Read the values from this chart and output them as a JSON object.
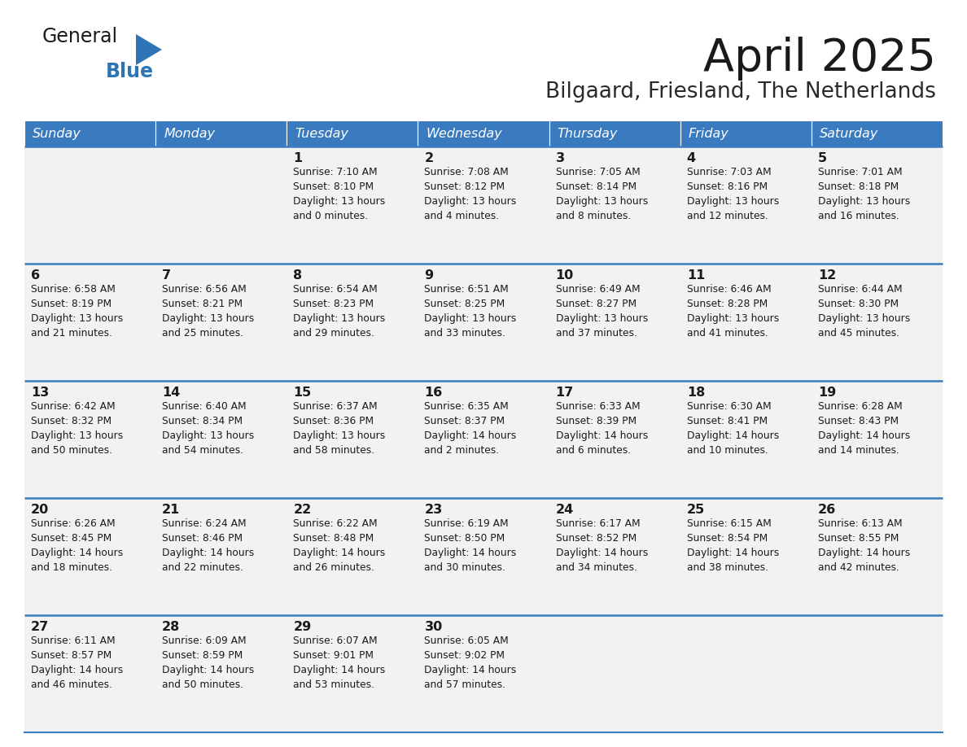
{
  "title": "April 2025",
  "subtitle": "Bilgaard, Friesland, The Netherlands",
  "days_of_week": [
    "Sunday",
    "Monday",
    "Tuesday",
    "Wednesday",
    "Thursday",
    "Friday",
    "Saturday"
  ],
  "header_bg": "#3a7abf",
  "header_text": "#FFFFFF",
  "cell_bg": "#F2F2F2",
  "cell_text": "#1a1a1a",
  "border_color": "#3a7abf",
  "title_color": "#1a1a1a",
  "subtitle_color": "#2a2a2a",
  "logo_general_color": "#1a1a1a",
  "logo_blue_color": "#2E75B6",
  "fig_width": 11.88,
  "fig_height": 9.18,
  "weeks": [
    [
      {
        "day": null,
        "info": null
      },
      {
        "day": null,
        "info": null
      },
      {
        "day": 1,
        "info": "Sunrise: 7:10 AM\nSunset: 8:10 PM\nDaylight: 13 hours\nand 0 minutes."
      },
      {
        "day": 2,
        "info": "Sunrise: 7:08 AM\nSunset: 8:12 PM\nDaylight: 13 hours\nand 4 minutes."
      },
      {
        "day": 3,
        "info": "Sunrise: 7:05 AM\nSunset: 8:14 PM\nDaylight: 13 hours\nand 8 minutes."
      },
      {
        "day": 4,
        "info": "Sunrise: 7:03 AM\nSunset: 8:16 PM\nDaylight: 13 hours\nand 12 minutes."
      },
      {
        "day": 5,
        "info": "Sunrise: 7:01 AM\nSunset: 8:18 PM\nDaylight: 13 hours\nand 16 minutes."
      }
    ],
    [
      {
        "day": 6,
        "info": "Sunrise: 6:58 AM\nSunset: 8:19 PM\nDaylight: 13 hours\nand 21 minutes."
      },
      {
        "day": 7,
        "info": "Sunrise: 6:56 AM\nSunset: 8:21 PM\nDaylight: 13 hours\nand 25 minutes."
      },
      {
        "day": 8,
        "info": "Sunrise: 6:54 AM\nSunset: 8:23 PM\nDaylight: 13 hours\nand 29 minutes."
      },
      {
        "day": 9,
        "info": "Sunrise: 6:51 AM\nSunset: 8:25 PM\nDaylight: 13 hours\nand 33 minutes."
      },
      {
        "day": 10,
        "info": "Sunrise: 6:49 AM\nSunset: 8:27 PM\nDaylight: 13 hours\nand 37 minutes."
      },
      {
        "day": 11,
        "info": "Sunrise: 6:46 AM\nSunset: 8:28 PM\nDaylight: 13 hours\nand 41 minutes."
      },
      {
        "day": 12,
        "info": "Sunrise: 6:44 AM\nSunset: 8:30 PM\nDaylight: 13 hours\nand 45 minutes."
      }
    ],
    [
      {
        "day": 13,
        "info": "Sunrise: 6:42 AM\nSunset: 8:32 PM\nDaylight: 13 hours\nand 50 minutes."
      },
      {
        "day": 14,
        "info": "Sunrise: 6:40 AM\nSunset: 8:34 PM\nDaylight: 13 hours\nand 54 minutes."
      },
      {
        "day": 15,
        "info": "Sunrise: 6:37 AM\nSunset: 8:36 PM\nDaylight: 13 hours\nand 58 minutes."
      },
      {
        "day": 16,
        "info": "Sunrise: 6:35 AM\nSunset: 8:37 PM\nDaylight: 14 hours\nand 2 minutes."
      },
      {
        "day": 17,
        "info": "Sunrise: 6:33 AM\nSunset: 8:39 PM\nDaylight: 14 hours\nand 6 minutes."
      },
      {
        "day": 18,
        "info": "Sunrise: 6:30 AM\nSunset: 8:41 PM\nDaylight: 14 hours\nand 10 minutes."
      },
      {
        "day": 19,
        "info": "Sunrise: 6:28 AM\nSunset: 8:43 PM\nDaylight: 14 hours\nand 14 minutes."
      }
    ],
    [
      {
        "day": 20,
        "info": "Sunrise: 6:26 AM\nSunset: 8:45 PM\nDaylight: 14 hours\nand 18 minutes."
      },
      {
        "day": 21,
        "info": "Sunrise: 6:24 AM\nSunset: 8:46 PM\nDaylight: 14 hours\nand 22 minutes."
      },
      {
        "day": 22,
        "info": "Sunrise: 6:22 AM\nSunset: 8:48 PM\nDaylight: 14 hours\nand 26 minutes."
      },
      {
        "day": 23,
        "info": "Sunrise: 6:19 AM\nSunset: 8:50 PM\nDaylight: 14 hours\nand 30 minutes."
      },
      {
        "day": 24,
        "info": "Sunrise: 6:17 AM\nSunset: 8:52 PM\nDaylight: 14 hours\nand 34 minutes."
      },
      {
        "day": 25,
        "info": "Sunrise: 6:15 AM\nSunset: 8:54 PM\nDaylight: 14 hours\nand 38 minutes."
      },
      {
        "day": 26,
        "info": "Sunrise: 6:13 AM\nSunset: 8:55 PM\nDaylight: 14 hours\nand 42 minutes."
      }
    ],
    [
      {
        "day": 27,
        "info": "Sunrise: 6:11 AM\nSunset: 8:57 PM\nDaylight: 14 hours\nand 46 minutes."
      },
      {
        "day": 28,
        "info": "Sunrise: 6:09 AM\nSunset: 8:59 PM\nDaylight: 14 hours\nand 50 minutes."
      },
      {
        "day": 29,
        "info": "Sunrise: 6:07 AM\nSunset: 9:01 PM\nDaylight: 14 hours\nand 53 minutes."
      },
      {
        "day": 30,
        "info": "Sunrise: 6:05 AM\nSunset: 9:02 PM\nDaylight: 14 hours\nand 57 minutes."
      },
      {
        "day": null,
        "info": null
      },
      {
        "day": null,
        "info": null
      },
      {
        "day": null,
        "info": null
      }
    ]
  ]
}
